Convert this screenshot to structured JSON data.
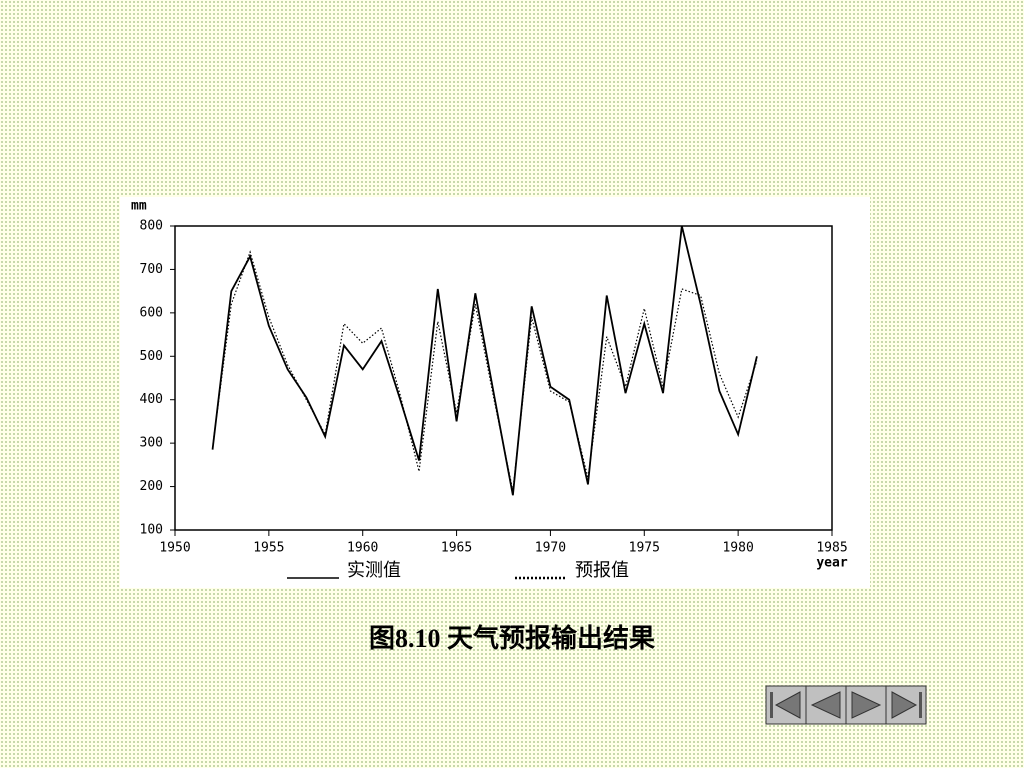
{
  "chart_data": {
    "type": "line",
    "y_label": "mm",
    "x_label": "year",
    "x": [
      1952,
      1953,
      1954,
      1955,
      1956,
      1957,
      1958,
      1959,
      1960,
      1961,
      1962,
      1963,
      1964,
      1965,
      1966,
      1967,
      1968,
      1969,
      1970,
      1971,
      1972,
      1973,
      1974,
      1975,
      1976,
      1977,
      1978,
      1979,
      1980,
      1981
    ],
    "series": [
      {
        "name": "实测值",
        "color": "#000000",
        "style": "solid",
        "values": [
          285,
          650,
          730,
          570,
          470,
          405,
          315,
          525,
          470,
          535,
          400,
          260,
          655,
          350,
          645,
          410,
          180,
          615,
          430,
          400,
          205,
          640,
          415,
          575,
          415,
          800,
          620,
          420,
          320,
          500
        ]
      },
      {
        "name": "预报值",
        "color": "#000000",
        "style": "dotted",
        "values": [
          290,
          620,
          740,
          590,
          480,
          400,
          320,
          575,
          530,
          565,
          410,
          235,
          580,
          370,
          620,
          400,
          190,
          590,
          420,
          395,
          220,
          545,
          430,
          610,
          430,
          655,
          640,
          460,
          360,
          490
        ]
      }
    ],
    "xlim": [
      1950,
      1985
    ],
    "xticks": [
      1950,
      1955,
      1960,
      1965,
      1970,
      1975,
      1980,
      1985
    ],
    "ylim": [
      100,
      800
    ],
    "yticks": [
      100,
      200,
      300,
      400,
      500,
      600,
      700,
      800
    ],
    "caption": "图8.10 天气预报输出结果"
  }
}
